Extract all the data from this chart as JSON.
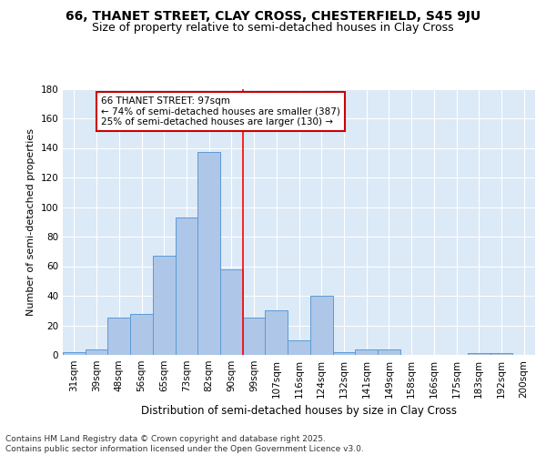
{
  "title": "66, THANET STREET, CLAY CROSS, CHESTERFIELD, S45 9JU",
  "subtitle": "Size of property relative to semi-detached houses in Clay Cross",
  "xlabel": "Distribution of semi-detached houses by size in Clay Cross",
  "ylabel": "Number of semi-detached properties",
  "categories": [
    "31sqm",
    "39sqm",
    "48sqm",
    "56sqm",
    "65sqm",
    "73sqm",
    "82sqm",
    "90sqm",
    "99sqm",
    "107sqm",
    "116sqm",
    "124sqm",
    "132sqm",
    "141sqm",
    "149sqm",
    "158sqm",
    "166sqm",
    "175sqm",
    "183sqm",
    "192sqm",
    "200sqm"
  ],
  "values": [
    2,
    4,
    25,
    28,
    67,
    93,
    137,
    58,
    25,
    30,
    10,
    40,
    2,
    4,
    4,
    0,
    0,
    0,
    1,
    1,
    0
  ],
  "bar_color": "#aec6e8",
  "bar_edge_color": "#5b9bd5",
  "background_color": "#dce9f7",
  "grid_color": "#ffffff",
  "red_line_x": 7.5,
  "annotation_text": "66 THANET STREET: 97sqm\n← 74% of semi-detached houses are smaller (387)\n25% of semi-detached houses are larger (130) →",
  "annotation_box_facecolor": "#ffffff",
  "annotation_box_edgecolor": "#cc0000",
  "footer": "Contains HM Land Registry data © Crown copyright and database right 2025.\nContains public sector information licensed under the Open Government Licence v3.0.",
  "fig_facecolor": "#ffffff",
  "ylim": [
    0,
    180
  ],
  "yticks": [
    0,
    20,
    40,
    60,
    80,
    100,
    120,
    140,
    160,
    180
  ],
  "title_fontsize": 10,
  "subtitle_fontsize": 9,
  "ylabel_fontsize": 8,
  "xlabel_fontsize": 8.5,
  "tick_fontsize": 7.5,
  "annotation_fontsize": 7.5,
  "footer_fontsize": 6.5
}
